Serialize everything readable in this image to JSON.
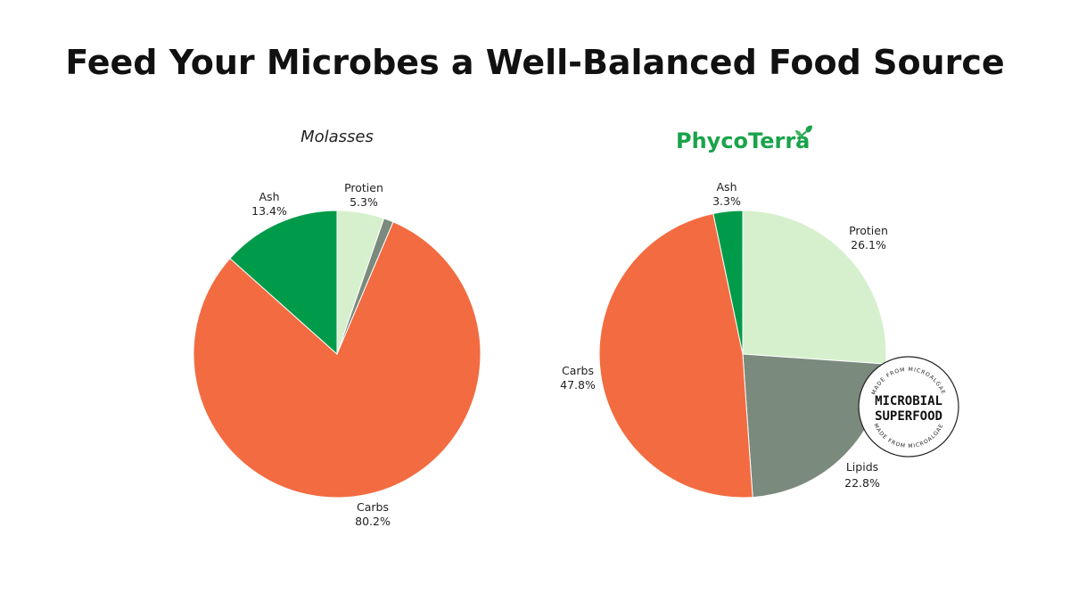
{
  "title": "Feed Your Microbes a Well-Balanced Food Source",
  "colors": {
    "protein": "#d6efcc",
    "lipids": "#7a8b7d",
    "carbs": "#f26b41",
    "ash": "#009b4a",
    "brand_green": "#1aa34a"
  },
  "brand": {
    "part1": "Phyco",
    "part2": "Terra"
  },
  "badge": {
    "line1": "MICROBIAL",
    "line2": "SUPERFOOD",
    "ring_text": "MADE FROM MICROALGAE"
  },
  "chart_data": [
    {
      "type": "pie",
      "title": "Molasses",
      "slices": [
        {
          "label": "Protien",
          "value": 5.3,
          "display": "5.3%",
          "color_key": "protein"
        },
        {
          "label": "",
          "value": 1.1,
          "display": "",
          "color_key": "lipids"
        },
        {
          "label": "Carbs",
          "value": 80.2,
          "display": "80.2%",
          "color_key": "carbs"
        },
        {
          "label": "Ash",
          "value": 13.4,
          "display": "13.4%",
          "color_key": "ash"
        }
      ]
    },
    {
      "type": "pie",
      "title": "PhycoTerra",
      "slices": [
        {
          "label": "Protien",
          "value": 26.1,
          "display": "26.1%",
          "color_key": "protein"
        },
        {
          "label": "Lipids",
          "value": 22.8,
          "display": "22.8%",
          "color_key": "lipids"
        },
        {
          "label": "Carbs",
          "value": 47.8,
          "display": "47.8%",
          "color_key": "carbs"
        },
        {
          "label": "Ash",
          "value": 3.3,
          "display": "3.3%",
          "color_key": "ash"
        }
      ]
    }
  ]
}
